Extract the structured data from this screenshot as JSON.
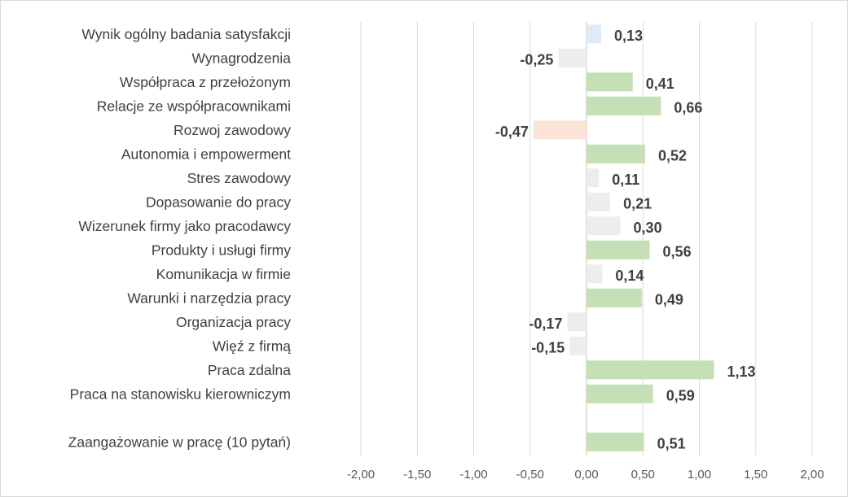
{
  "chart_data": {
    "type": "bar",
    "orientation": "horizontal",
    "title": "",
    "xlabel": "",
    "ylabel": "",
    "xlim": [
      -2,
      2
    ],
    "grid": true,
    "legend": "none",
    "x_ticks": [
      "-2,00",
      "-1,50",
      "-1,00",
      "-0,50",
      "0,00",
      "0,50",
      "1,00",
      "1,50",
      "2,00"
    ],
    "categories": [
      "Wynik ogólny badania satysfakcji",
      "Wynagrodzenia",
      "Współpraca z przełożonym",
      "Relacje ze współpracownikami",
      "Rozwoj zawodowy",
      "Autonomia i empowerment",
      "Stres zawodowy",
      "Dopasowanie do pracy",
      "Wizerunek firmy jako pracodawcy",
      "Produkty i usługi firmy",
      "Komunikacja w firmie",
      "Warunki i narzędzia pracy",
      "Organizacja pracy",
      "Więź z firmą",
      "Praca zdalna",
      "Praca na stanowisku kierowniczym",
      "",
      "Zaangażowanie w pracę (10 pytań)"
    ],
    "values": [
      0.13,
      -0.25,
      0.41,
      0.66,
      -0.47,
      0.52,
      0.11,
      0.21,
      0.3,
      0.56,
      0.14,
      0.49,
      -0.17,
      -0.15,
      1.13,
      0.59,
      null,
      0.51
    ],
    "labels": [
      "0,13",
      "-0,25",
      "0,41",
      "0,66",
      "-0,47",
      "0,52",
      "0,11",
      "0,21",
      "0,30",
      "0,56",
      "0,14",
      "0,49",
      "-0,17",
      "-0,15",
      "1,13",
      "0,59",
      "",
      "0,51"
    ],
    "colors": [
      "#deebf7",
      "#ededed",
      "#c5e0b4",
      "#c5e0b4",
      "#fbe3d6",
      "#c5e0b4",
      "#ededed",
      "#ededed",
      "#ededed",
      "#c5e0b4",
      "#ededed",
      "#c5e0b4",
      "#ededed",
      "#ededed",
      "#c5e0b4",
      "#c5e0b4",
      null,
      "#c5e0b4"
    ]
  }
}
